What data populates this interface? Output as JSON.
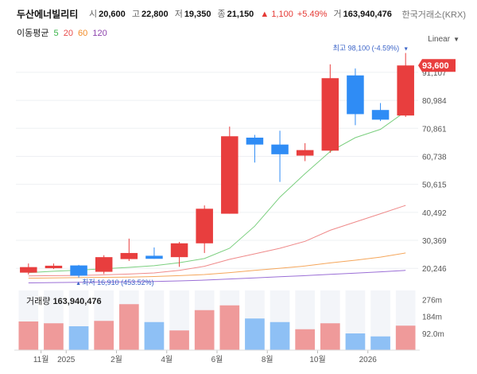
{
  "header": {
    "name": "두산에너빌리티",
    "open_label": "시",
    "open": "20,600",
    "high_label": "고",
    "high": "22,800",
    "low_label": "저",
    "low": "19,350",
    "close_label": "종",
    "close": "21,150",
    "change": "▲ 1,100",
    "change_pct": "+5.49%",
    "volume_label": "거",
    "volume": "163,940,476",
    "exchange": "한국거래소(KRX)"
  },
  "ma_legend": {
    "title": "이동평균",
    "items": [
      {
        "label": "5",
        "color": "#3cb44b"
      },
      {
        "label": "20",
        "color": "#e84c4c"
      },
      {
        "label": "60",
        "color": "#f28c28"
      },
      {
        "label": "120",
        "color": "#8e44ad"
      }
    ]
  },
  "scale_select": {
    "value": "Linear"
  },
  "volume_panel": {
    "title": "거래량",
    "value": "163,940,476"
  },
  "chart_data": {
    "type": "candlestick",
    "colors": {
      "up": "#e83e3e",
      "down": "#2f8cf5",
      "volume_up": "#ef9a9a",
      "volume_down": "#8ec0f5"
    },
    "y_scale": "linear",
    "y_ticks": [
      20246,
      30369,
      40492,
      50615,
      60738,
      70861,
      80984,
      91107
    ],
    "y_tick_labels": [
      "20,246",
      "30,369",
      "40,492",
      "50,615",
      "60,738",
      "70,861",
      "80,984",
      "91,107"
    ],
    "ylim": [
      16000,
      100000
    ],
    "x_tick_labels": [
      {
        "label": "11월",
        "index": 1
      },
      {
        "label": "2025",
        "index": 2
      },
      {
        "label": "2월",
        "index": 4
      },
      {
        "label": "4월",
        "index": 6
      },
      {
        "label": "6월",
        "index": 8
      },
      {
        "label": "8월",
        "index": 10
      },
      {
        "label": "10월",
        "index": 12
      },
      {
        "label": "2026",
        "index": 14
      }
    ],
    "candles": [
      {
        "open": 18700,
        "high": 22000,
        "low": 18000,
        "close": 20700
      },
      {
        "open": 20300,
        "high": 22000,
        "low": 20000,
        "close": 21200
      },
      {
        "open": 21300,
        "high": 21500,
        "low": 16910,
        "close": 17600
      },
      {
        "open": 19000,
        "high": 25000,
        "low": 18200,
        "close": 24300
      },
      {
        "open": 23600,
        "high": 31000,
        "low": 22900,
        "close": 25800
      },
      {
        "open": 24800,
        "high": 27800,
        "low": 23700,
        "close": 23700
      },
      {
        "open": 24300,
        "high": 29800,
        "low": 20800,
        "close": 29300
      },
      {
        "open": 29300,
        "high": 43000,
        "low": 25800,
        "close": 41800
      },
      {
        "open": 40000,
        "high": 71500,
        "low": 40000,
        "close": 68000
      },
      {
        "open": 67500,
        "high": 68500,
        "low": 58500,
        "close": 65000
      },
      {
        "open": 65000,
        "high": 70000,
        "low": 51500,
        "close": 61500
      },
      {
        "open": 61000,
        "high": 65500,
        "low": 59000,
        "close": 63000
      },
      {
        "open": 62800,
        "high": 94000,
        "low": 62000,
        "close": 89000
      },
      {
        "open": 90000,
        "high": 92500,
        "low": 72000,
        "close": 76000
      },
      {
        "open": 77500,
        "high": 80000,
        "low": 73500,
        "close": 74000
      },
      {
        "open": 75500,
        "high": 98100,
        "low": 75000,
        "close": 93600
      }
    ],
    "volumes": [
      0.48,
      0.45,
      0.4,
      0.49,
      0.77,
      0.47,
      0.33,
      0.67,
      0.75,
      0.53,
      0.47,
      0.35,
      0.45,
      0.28,
      0.23,
      0.41
    ],
    "volume_ticks": [
      {
        "label": "276m",
        "value": 0.85
      },
      {
        "label": "184m",
        "value": 0.57
      },
      {
        "label": "92.0m",
        "value": 0.28
      }
    ],
    "ma": {
      "ma5": [
        18700,
        19200,
        19600,
        20100,
        20600,
        21200,
        22300,
        23800,
        27500,
        35500,
        46000,
        54500,
        62500,
        67500,
        70500,
        77000
      ],
      "ma20": [
        17500,
        17600,
        17700,
        17900,
        18200,
        18600,
        19500,
        21000,
        23500,
        25500,
        27500,
        30000,
        34000,
        37000,
        40000,
        43000
      ],
      "ma60": [
        16700,
        16800,
        16900,
        17000,
        17100,
        17300,
        17600,
        18000,
        18700,
        19500,
        20300,
        21100,
        22200,
        23200,
        24300,
        25800
      ],
      "ma120": [
        15000,
        15100,
        15200,
        15300,
        15400,
        15500,
        15700,
        16000,
        16400,
        16800,
        17200,
        17600,
        18100,
        18500,
        19000,
        19500
      ]
    },
    "annotations": {
      "high": {
        "label": "최고 98,100 (-4.59%)",
        "value": 98100
      },
      "low": {
        "label": "최저 16,910 (453.52%)",
        "value": 16910
      },
      "last_price": {
        "label": "93,600",
        "value": 93600
      }
    }
  }
}
